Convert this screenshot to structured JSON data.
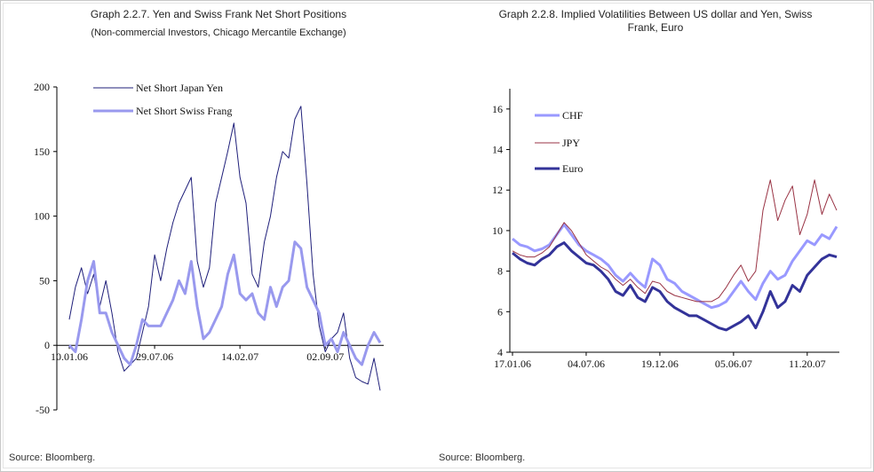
{
  "chart_data": [
    {
      "type": "line",
      "title": "Graph 2.2.7. Yen and Swiss Frank Net Short Positions",
      "subtitle": "(Non-commercial Investors, Chicago Mercantile Exchange)",
      "source": "Source: Bloomberg.",
      "categories": [
        "10.01.06",
        null,
        null,
        null,
        null,
        null,
        null,
        null,
        null,
        null,
        null,
        null,
        null,
        null,
        "29.07.06",
        null,
        null,
        null,
        null,
        null,
        null,
        null,
        null,
        null,
        null,
        null,
        null,
        null,
        "14.02.07",
        null,
        null,
        null,
        null,
        null,
        null,
        null,
        null,
        null,
        null,
        null,
        null,
        null,
        "02.09.07",
        null,
        null,
        null,
        null,
        null,
        null,
        null,
        null,
        null
      ],
      "series": [
        {
          "name": "Net Short Japan Yen",
          "color": "#1f1f7a",
          "width": 1,
          "values": [
            20,
            45,
            60,
            40,
            55,
            30,
            50,
            25,
            -5,
            -20,
            -15,
            -10,
            10,
            30,
            70,
            50,
            75,
            95,
            110,
            120,
            130,
            65,
            45,
            60,
            110,
            130,
            150,
            172,
            130,
            110,
            55,
            45,
            80,
            100,
            130,
            150,
            145,
            175,
            185,
            125,
            55,
            15,
            -5,
            5,
            10,
            25,
            -10,
            -25,
            -28,
            -30,
            -10,
            -35
          ]
        },
        {
          "name": "Net Short Swiss Frang",
          "color": "#9999ee",
          "width": 3,
          "values": [
            0,
            -5,
            20,
            50,
            65,
            25,
            25,
            10,
            0,
            -10,
            -15,
            0,
            20,
            15,
            15,
            15,
            25,
            35,
            50,
            40,
            65,
            30,
            5,
            10,
            20,
            30,
            55,
            70,
            40,
            35,
            40,
            25,
            20,
            45,
            30,
            45,
            50,
            80,
            75,
            45,
            35,
            25,
            0,
            5,
            -5,
            10,
            0,
            -10,
            -15,
            0,
            10,
            2
          ]
        }
      ],
      "ylim": [
        -50,
        200
      ],
      "yticks": [
        -50,
        0,
        50,
        100,
        150,
        200
      ],
      "legend": "top-left"
    },
    {
      "type": "line",
      "title": "Graph 2.2.8. Implied Volatilities Between US dollar and Yen, Swiss Frank, Euro",
      "source": "Source: Bloomberg.",
      "categories": [
        "17.01.06",
        null,
        null,
        null,
        null,
        null,
        null,
        null,
        null,
        null,
        "04.07.06",
        null,
        null,
        null,
        null,
        null,
        null,
        null,
        null,
        null,
        "19.12.06",
        null,
        null,
        null,
        null,
        null,
        null,
        null,
        null,
        null,
        "05.06.07",
        null,
        null,
        null,
        null,
        null,
        null,
        null,
        null,
        null,
        "11.20.07",
        null,
        null,
        null,
        null
      ],
      "series": [
        {
          "name": "CHF",
          "color": "#9999ff",
          "width": 3,
          "values": [
            9.6,
            9.3,
            9.2,
            9.0,
            9.1,
            9.3,
            9.8,
            10.3,
            9.8,
            9.3,
            9.0,
            8.8,
            8.6,
            8.3,
            7.8,
            7.5,
            7.9,
            7.5,
            7.2,
            8.6,
            8.3,
            7.6,
            7.4,
            7.0,
            6.8,
            6.6,
            6.4,
            6.2,
            6.3,
            6.5,
            7.0,
            7.5,
            7.0,
            6.6,
            7.4,
            8.0,
            7.6,
            7.8,
            8.5,
            9.0,
            9.5,
            9.3,
            9.8,
            9.6,
            10.2
          ]
        },
        {
          "name": "JPY",
          "color": "#993344",
          "width": 1,
          "values": [
            9.0,
            8.8,
            8.7,
            8.7,
            8.9,
            9.2,
            9.8,
            10.4,
            10.0,
            9.4,
            8.8,
            8.5,
            8.2,
            8.0,
            7.6,
            7.3,
            7.6,
            7.2,
            6.9,
            7.5,
            7.4,
            7.0,
            6.8,
            6.7,
            6.6,
            6.5,
            6.5,
            6.5,
            6.7,
            7.2,
            7.8,
            8.3,
            7.5,
            8.0,
            11.0,
            12.5,
            10.5,
            11.5,
            12.2,
            9.8,
            10.8,
            12.5,
            10.8,
            11.8,
            11.0
          ]
        },
        {
          "name": "Euro",
          "color": "#333399",
          "width": 3,
          "values": [
            8.9,
            8.6,
            8.4,
            8.3,
            8.6,
            8.8,
            9.2,
            9.4,
            9.0,
            8.7,
            8.4,
            8.3,
            8.0,
            7.6,
            7.0,
            6.8,
            7.3,
            6.7,
            6.5,
            7.2,
            7.0,
            6.5,
            6.2,
            6.0,
            5.8,
            5.8,
            5.6,
            5.4,
            5.2,
            5.1,
            5.3,
            5.5,
            5.8,
            5.2,
            6.0,
            7.0,
            6.2,
            6.5,
            7.3,
            7.0,
            7.8,
            8.2,
            8.6,
            8.8,
            8.7
          ]
        }
      ],
      "ylim": [
        4,
        17
      ],
      "yticks": [
        4,
        6,
        8,
        10,
        12,
        14,
        16
      ],
      "legend": "top-left"
    }
  ]
}
